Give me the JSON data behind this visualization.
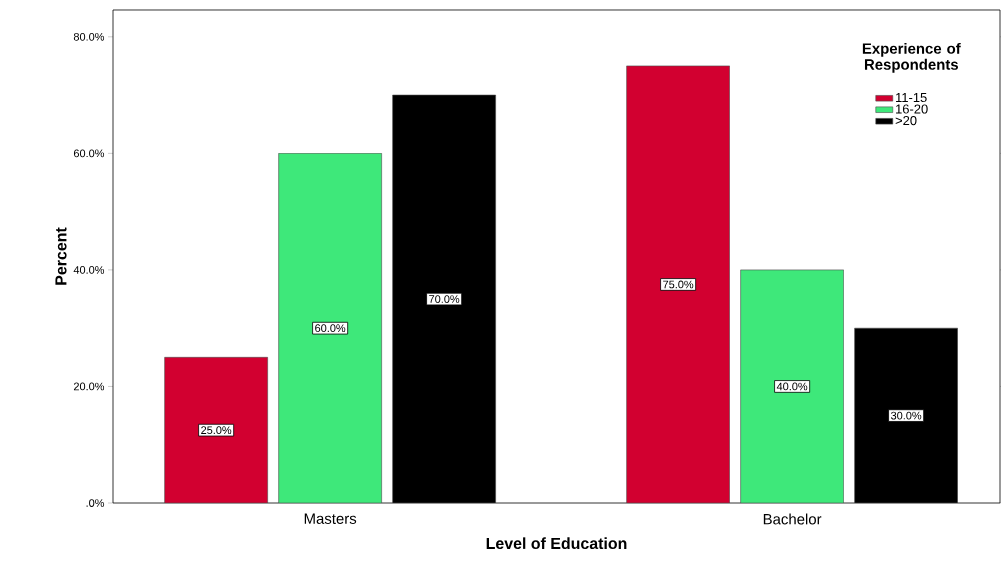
{
  "chart_data": {
    "type": "bar",
    "xlabel": "Level of Education",
    "ylabel": "Percent",
    "legend_title": "Experience of Respondents",
    "categories": [
      "Masters",
      "Bachelor"
    ],
    "series": [
      {
        "name": "11-15",
        "color": "#d20030",
        "values": [
          25,
          75
        ],
        "value_labels": [
          "25.0%",
          "75.0%"
        ]
      },
      {
        "name": "16-20",
        "color": "#3ee87a",
        "values": [
          60,
          40
        ],
        "value_labels": [
          "60.0%",
          "40.0%"
        ]
      },
      {
        "name": ">20",
        "color": "#000000",
        "values": [
          70,
          30
        ],
        "value_labels": [
          "70.0%",
          "30.0%"
        ]
      }
    ],
    "ylim": [
      0,
      84.6
    ],
    "yticks": [
      {
        "value": 0,
        "label": ".0%"
      },
      {
        "value": 20,
        "label": "20.0%"
      },
      {
        "value": 40,
        "label": "40.0%"
      },
      {
        "value": 60,
        "label": "60.0%"
      },
      {
        "value": 80,
        "label": "80.0%"
      }
    ],
    "legend": "top right",
    "grid": false
  }
}
